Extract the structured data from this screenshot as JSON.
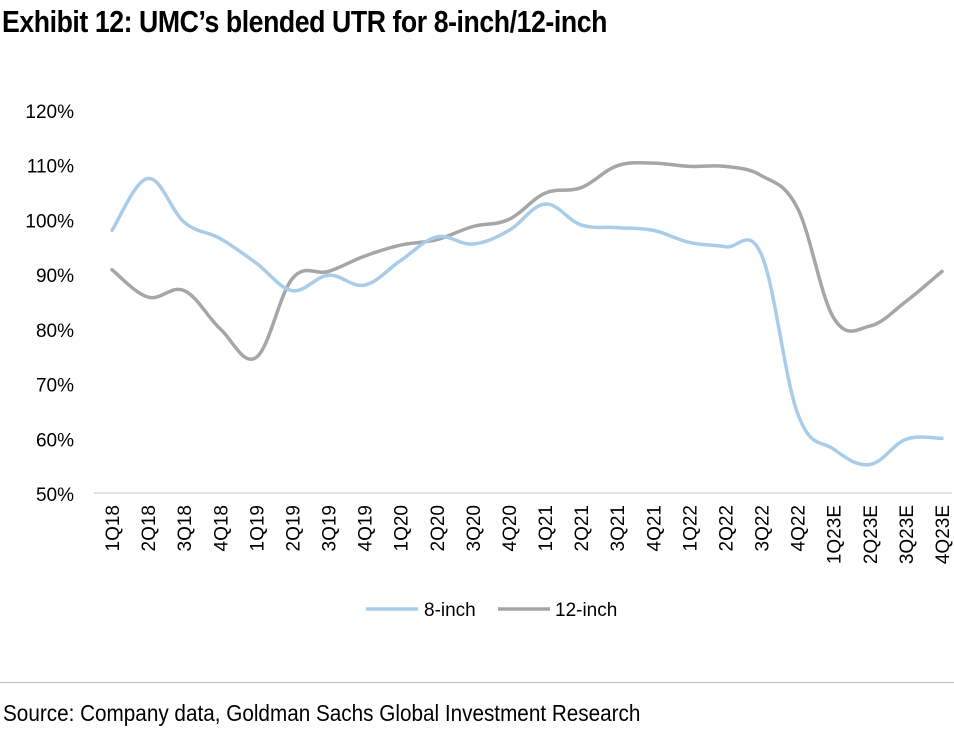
{
  "title": "Exhibit 12: UMC’s blended UTR for 8-inch/12-inch",
  "source": "Source: Company data, Goldman Sachs Global Investment Research",
  "colors": {
    "eight_inch": "#a9cde9",
    "twelve_inch": "#a6a6a6",
    "axis": "#d9d9d9"
  },
  "chart_data": {
    "type": "line",
    "categories": [
      "1Q18",
      "2Q18",
      "3Q18",
      "4Q18",
      "1Q19",
      "2Q19",
      "3Q19",
      "4Q19",
      "1Q20",
      "2Q20",
      "3Q20",
      "4Q20",
      "1Q21",
      "2Q21",
      "3Q21",
      "4Q21",
      "1Q22",
      "2Q22",
      "3Q22",
      "4Q22",
      "1Q23E",
      "2Q23E",
      "3Q23E",
      "4Q23E"
    ],
    "series": [
      {
        "name": "8-inch",
        "values": [
          98,
          107.5,
          99.5,
          96.5,
          92,
          87,
          89.8,
          88,
          92.5,
          96.8,
          95.5,
          98,
          102.8,
          99,
          98.5,
          98,
          95.8,
          95,
          93.5,
          64.5,
          58,
          55.2,
          59.8,
          60
        ]
      },
      {
        "name": "12-inch",
        "values": [
          90.8,
          85.8,
          87,
          80,
          74.8,
          89.2,
          90.5,
          93.3,
          95.3,
          96.3,
          98.7,
          100,
          104.8,
          105.8,
          109.8,
          110.3,
          109.7,
          109.7,
          108,
          102,
          82,
          80.5,
          85,
          90.5
        ]
      }
    ],
    "ylim": [
      50,
      120
    ],
    "yticks": [
      "50%",
      "60%",
      "70%",
      "80%",
      "90%",
      "100%",
      "110%",
      "120%"
    ],
    "ytick_values": [
      50,
      60,
      70,
      80,
      90,
      100,
      110,
      120
    ],
    "grid": false,
    "legend": "bottom"
  }
}
